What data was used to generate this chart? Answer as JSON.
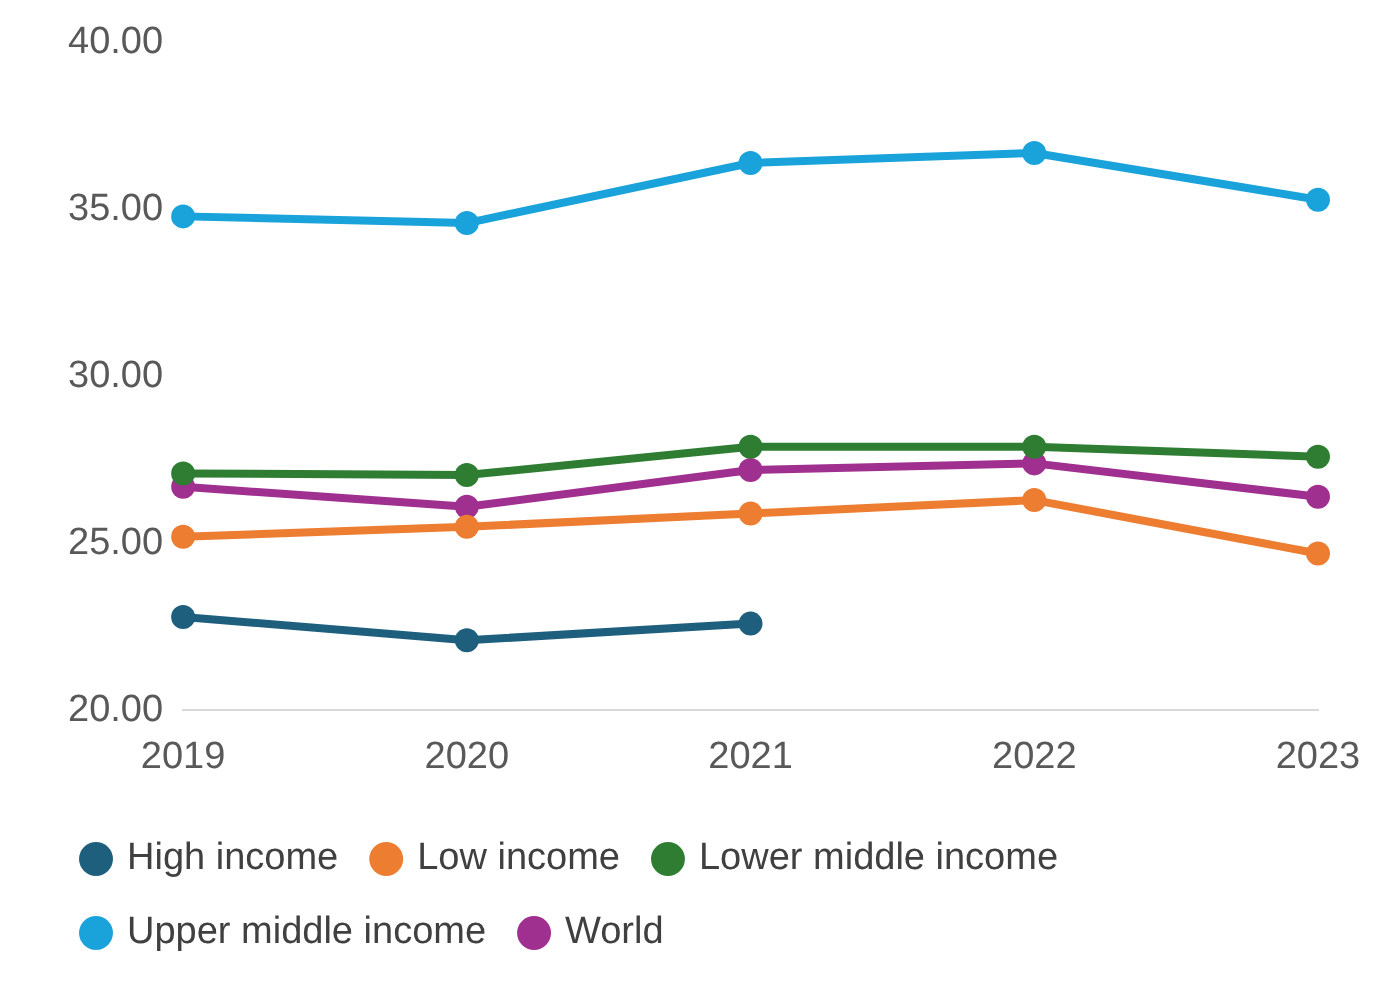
{
  "chart_data": {
    "type": "line",
    "categories": [
      "2019",
      "2020",
      "2021",
      "2022",
      "2023"
    ],
    "series": [
      {
        "name": "High income",
        "color": "#1f5f7e",
        "values": [
          22.8,
          22.1,
          22.6,
          null,
          null
        ]
      },
      {
        "name": "Low income",
        "color": "#ed7d31",
        "values": [
          25.2,
          25.5,
          25.9,
          26.3,
          24.7
        ]
      },
      {
        "name": "Lower middle income",
        "color": "#2e7d32",
        "values": [
          27.1,
          27.05,
          27.9,
          27.9,
          27.6
        ]
      },
      {
        "name": "Upper middle income",
        "color": "#1aa3db",
        "values": [
          34.8,
          34.6,
          36.4,
          36.7,
          35.3
        ]
      },
      {
        "name": "World",
        "color": "#a0308f",
        "values": [
          26.7,
          26.1,
          27.2,
          27.4,
          26.4
        ]
      }
    ],
    "ylim": [
      20,
      40
    ],
    "yticks": [
      {
        "value": 20,
        "label": "20.00"
      },
      {
        "value": 25,
        "label": "25.00"
      },
      {
        "value": 30,
        "label": "30.00"
      },
      {
        "value": 35,
        "label": "35.00"
      },
      {
        "value": 40,
        "label": "40.00"
      }
    ],
    "grid": false,
    "legend": "bottom",
    "marker": "circle",
    "line_style": "solid"
  }
}
